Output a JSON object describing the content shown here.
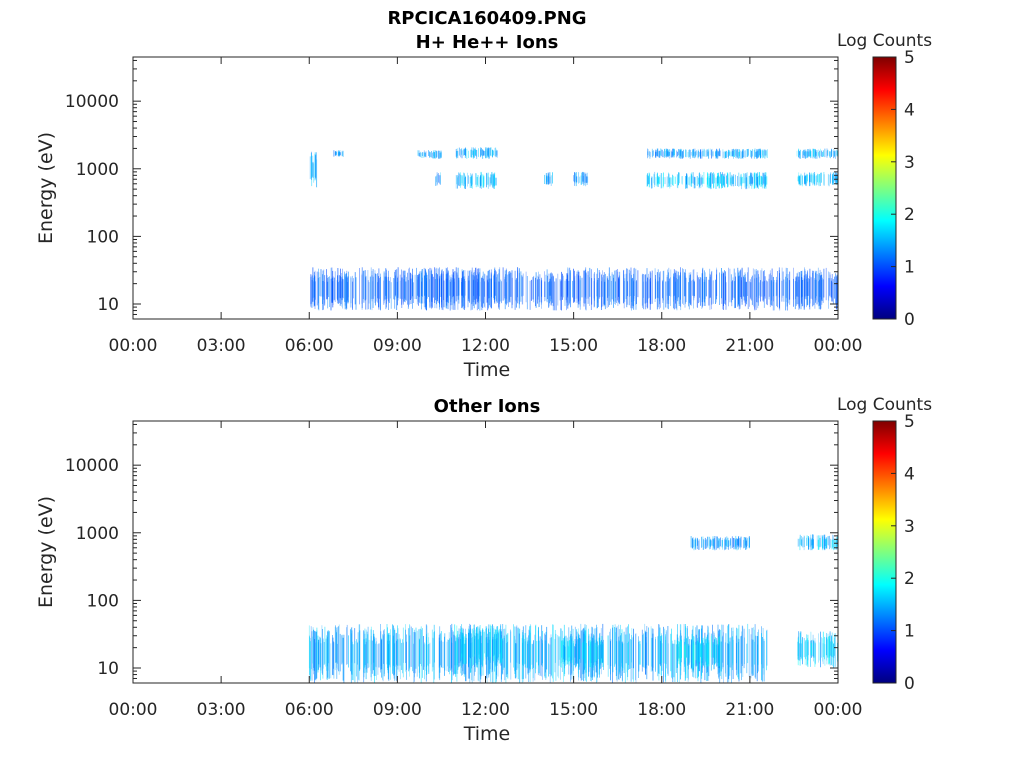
{
  "figure_title": "RPCICA160409.PNG",
  "colorbar_label": "Log Counts",
  "colormap": [
    "#00007f",
    "#0000ff",
    "#007fff",
    "#00ffff",
    "#7fff7f",
    "#ffff00",
    "#ff7f00",
    "#ff0000",
    "#7f0000"
  ],
  "chart_data": [
    {
      "type": "heatmap",
      "title": "H+ He++ Ions",
      "xlabel": "Time",
      "ylabel": "Energy (eV)",
      "xticks": [
        "00:00",
        "03:00",
        "06:00",
        "09:00",
        "12:00",
        "15:00",
        "18:00",
        "21:00",
        "00:00"
      ],
      "xlim_hours": [
        0,
        24
      ],
      "yscale": "log",
      "ylim": [
        6,
        45000
      ],
      "yticks": [
        "10",
        "100",
        "1000",
        "10000"
      ],
      "colorbar": {
        "label": "Log Counts",
        "range": [
          0,
          5
        ],
        "ticks": [
          "0",
          "1",
          "2",
          "3",
          "4",
          "5"
        ]
      },
      "activity": [
        {
          "t_start": 6.0,
          "t_end": 6.3,
          "e_min": 500,
          "e_max": 1900,
          "level": 1.0
        },
        {
          "t_start": 6.8,
          "t_end": 7.2,
          "e_min": 1500,
          "e_max": 1900,
          "level": 0.9
        },
        {
          "t_start": 9.7,
          "t_end": 10.5,
          "e_min": 1400,
          "e_max": 1900,
          "level": 0.9
        },
        {
          "t_start": 10.3,
          "t_end": 10.5,
          "e_min": 550,
          "e_max": 900,
          "level": 0.9
        },
        {
          "t_start": 11.0,
          "t_end": 12.4,
          "e_min": 1400,
          "e_max": 2100,
          "level": 1.0
        },
        {
          "t_start": 11.0,
          "t_end": 12.4,
          "e_min": 500,
          "e_max": 900,
          "level": 1.1
        },
        {
          "t_start": 14.0,
          "t_end": 14.3,
          "e_min": 550,
          "e_max": 900,
          "level": 0.9
        },
        {
          "t_start": 15.0,
          "t_end": 15.5,
          "e_min": 550,
          "e_max": 900,
          "level": 0.9
        },
        {
          "t_start": 17.5,
          "t_end": 20.0,
          "e_min": 1400,
          "e_max": 2000,
          "level": 0.9
        },
        {
          "t_start": 17.5,
          "t_end": 21.6,
          "e_min": 500,
          "e_max": 900,
          "level": 1.1
        },
        {
          "t_start": 20.0,
          "t_end": 21.6,
          "e_min": 1400,
          "e_max": 2000,
          "level": 1.0
        },
        {
          "t_start": 22.6,
          "t_end": 24.0,
          "e_min": 1400,
          "e_max": 2000,
          "level": 1.0
        },
        {
          "t_start": 22.6,
          "t_end": 24.0,
          "e_min": 550,
          "e_max": 900,
          "level": 1.1
        },
        {
          "t_start": 6.0,
          "t_end": 24.0,
          "e_min": 8,
          "e_max": 35,
          "level": 0.6
        }
      ]
    },
    {
      "type": "heatmap",
      "title": "Other Ions",
      "xlabel": "Time",
      "ylabel": "Energy (eV)",
      "xticks": [
        "00:00",
        "03:00",
        "06:00",
        "09:00",
        "12:00",
        "15:00",
        "18:00",
        "21:00",
        "00:00"
      ],
      "xlim_hours": [
        0,
        24
      ],
      "yscale": "log",
      "ylim": [
        6,
        45000
      ],
      "yticks": [
        "10",
        "100",
        "1000",
        "10000"
      ],
      "colorbar": {
        "label": "Log Counts",
        "range": [
          0,
          5
        ],
        "ticks": [
          "0",
          "1",
          "2",
          "3",
          "4",
          "5"
        ]
      },
      "activity": [
        {
          "t_start": 6.0,
          "t_end": 21.6,
          "e_min": 6,
          "e_max": 45,
          "level": 1.0
        },
        {
          "t_start": 11.0,
          "t_end": 12.6,
          "e_min": 10,
          "e_max": 45,
          "level": 1.2
        },
        {
          "t_start": 14.5,
          "t_end": 16.0,
          "e_min": 10,
          "e_max": 30,
          "level": 1.2
        },
        {
          "t_start": 18.5,
          "t_end": 20.0,
          "e_min": 10,
          "e_max": 30,
          "level": 1.3
        },
        {
          "t_start": 22.6,
          "t_end": 24.0,
          "e_min": 10,
          "e_max": 35,
          "level": 1.2
        },
        {
          "t_start": 19.0,
          "t_end": 21.0,
          "e_min": 550,
          "e_max": 900,
          "level": 0.9
        },
        {
          "t_start": 22.6,
          "t_end": 24.0,
          "e_min": 550,
          "e_max": 950,
          "level": 1.1
        }
      ]
    }
  ]
}
